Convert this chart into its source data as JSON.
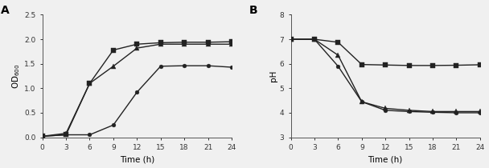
{
  "time": [
    0,
    3,
    6,
    9,
    12,
    15,
    18,
    21,
    24
  ],
  "A_line1_sq": [
    0.02,
    0.05,
    1.1,
    1.78,
    1.9,
    1.93,
    1.94,
    1.94,
    1.95
  ],
  "A_line2_tri": [
    0.02,
    0.08,
    1.1,
    1.45,
    1.82,
    1.9,
    1.9,
    1.9,
    1.9
  ],
  "A_line3_circ": [
    0.02,
    0.05,
    0.05,
    0.25,
    0.92,
    1.45,
    1.46,
    1.46,
    1.43
  ],
  "B_line1_sq": [
    7.0,
    7.0,
    6.88,
    5.97,
    5.95,
    5.93,
    5.93,
    5.94,
    5.96
  ],
  "B_line2_tri": [
    7.0,
    7.0,
    6.35,
    4.45,
    4.18,
    4.1,
    4.05,
    4.05,
    4.05
  ],
  "B_line3_circ": [
    7.0,
    7.0,
    5.9,
    4.45,
    4.1,
    4.05,
    4.02,
    4.0,
    4.0
  ],
  "A_ylim": [
    0,
    2.5
  ],
  "A_yticks": [
    0,
    0.5,
    1.0,
    1.5,
    2.0,
    2.5
  ],
  "A_ylabel": "OD$_{600}$",
  "B_ylim": [
    3,
    8
  ],
  "B_yticks": [
    3,
    4,
    5,
    6,
    7,
    8
  ],
  "B_ylabel": "pH",
  "xticks": [
    0,
    3,
    6,
    9,
    12,
    15,
    18,
    21,
    24
  ],
  "xlabel": "Time (h)",
  "label_A": "A",
  "label_B": "B",
  "line_color": "#222222",
  "bg_color": "#f0f0f0",
  "plot_bg": "#f0f0f0"
}
